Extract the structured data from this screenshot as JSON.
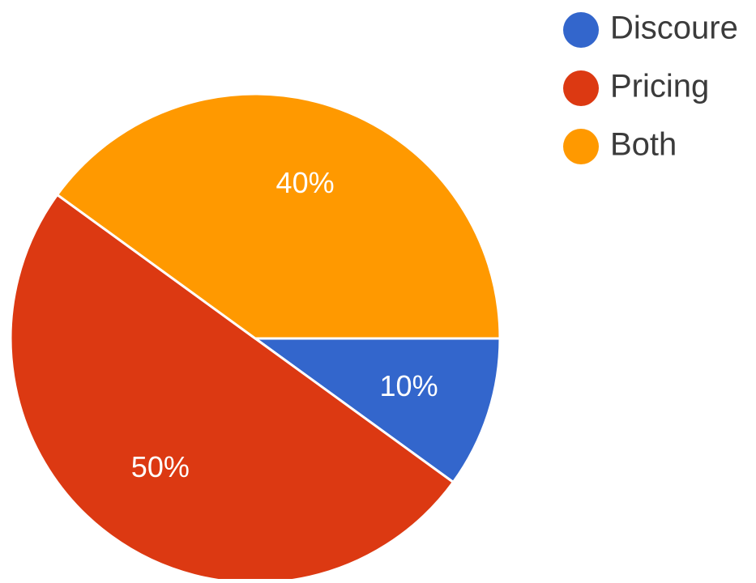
{
  "chart_data": {
    "type": "pie",
    "labels": [
      "Discoure",
      "Pricing",
      "Both"
    ],
    "values": [
      10,
      50,
      40
    ],
    "value_labels": [
      "10%",
      "50%",
      "40%"
    ],
    "colors": [
      "#3366cc",
      "#dc3912",
      "#ff9900"
    ],
    "legend_position": "top-right"
  }
}
